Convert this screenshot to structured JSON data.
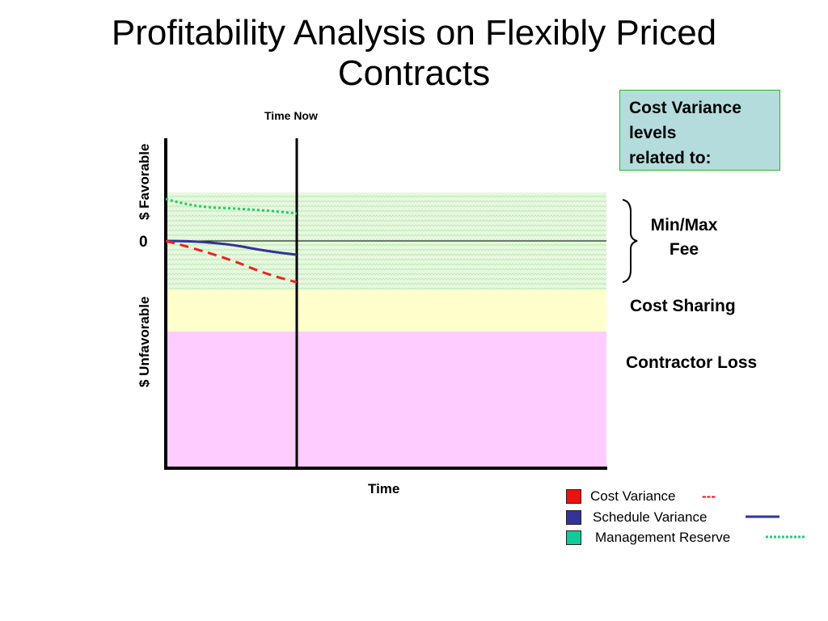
{
  "title": {
    "line1": "Profitability Analysis on Flexibly Priced",
    "line2": "Contracts"
  },
  "time_now_label": "Time Now",
  "axes": {
    "x_label": "Time",
    "y_favorable_label": "$ Favorable",
    "y_unfavorable_label": "$ Unfavorable",
    "zero_label": "0"
  },
  "callout": {
    "line1": "Cost Variance",
    "line2": "levels",
    "line3": "related to:"
  },
  "zones": {
    "min_max_fee_line1": "Min/Max",
    "min_max_fee_line2": "Fee",
    "cost_sharing": "Cost Sharing",
    "contractor_loss": "Contractor Loss"
  },
  "legend": [
    {
      "label": "Cost Variance",
      "marker": "---",
      "color": "#ee1111",
      "line_style": "dashed",
      "line_color": "#ee1111"
    },
    {
      "label": "Schedule Variance",
      "marker": "",
      "color": "#333399",
      "line_style": "solid",
      "line_color": "#333399"
    },
    {
      "label": "Management Reserve",
      "marker": "",
      "color": "#11cc99",
      "line_style": "dotted",
      "line_color": "#22cc77"
    }
  ],
  "colors": {
    "fee_zone": "#e8f8e0",
    "fee_zone_pattern": "#b8e8b0",
    "cost_sharing_zone": "#ffffcc",
    "contractor_loss_zone": "#ffccff",
    "cost_variance_line": "#ee2222",
    "schedule_variance_line": "#333399",
    "management_reserve_line": "#22cc66",
    "callout_background": "#b4dcdc"
  }
}
